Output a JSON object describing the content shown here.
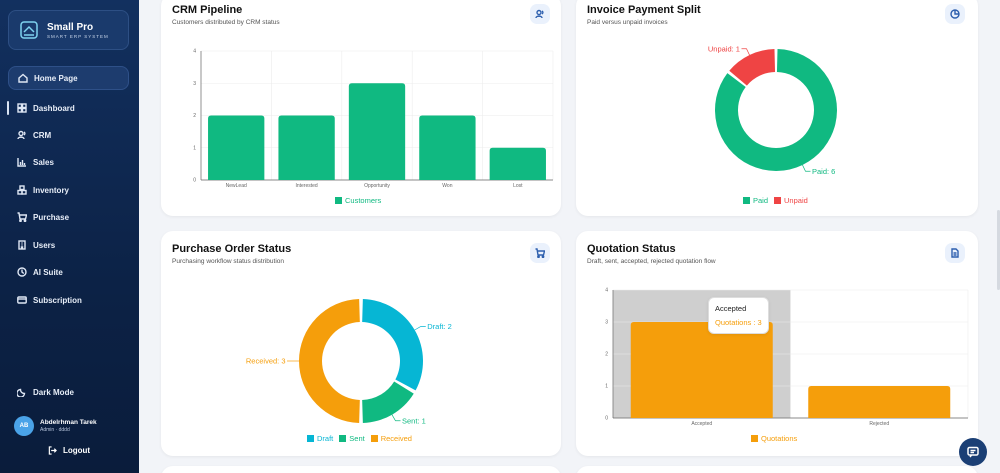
{
  "app": {
    "name": "Small Pro",
    "tagline": "SMART ERP SYSTEM"
  },
  "sidebar": {
    "items": [
      {
        "label": "Home Page",
        "icon": "home-icon"
      },
      {
        "label": "Dashboard",
        "icon": "dashboard-icon"
      },
      {
        "label": "CRM",
        "icon": "users-icon"
      },
      {
        "label": "Sales",
        "icon": "bar-chart-icon"
      },
      {
        "label": "Inventory",
        "icon": "boxes-icon"
      },
      {
        "label": "Purchase",
        "icon": "cart-icon"
      },
      {
        "label": "Users",
        "icon": "building-icon"
      },
      {
        "label": "AI Suite",
        "icon": "ai-icon"
      },
      {
        "label": "Subscription",
        "icon": "card-icon"
      }
    ],
    "dark_mode_label": "Dark Mode",
    "user": {
      "initials": "AB",
      "name": "Abdelrhman Tarek",
      "role": "Admin · dddd"
    },
    "logout_label": "Logout"
  },
  "cards": {
    "crm": {
      "title": "CRM Pipeline",
      "subtitle": "Customers distributed by CRM status",
      "icon": "users-icon"
    },
    "invoice": {
      "title": "Invoice Payment Split",
      "subtitle": "Paid versus unpaid invoices",
      "icon": "pie-chart-icon"
    },
    "purchase": {
      "title": "Purchase Order Status",
      "subtitle": "Purchasing workflow status distribution",
      "icon": "cart-icon"
    },
    "quotation": {
      "title": "Quotation Status",
      "subtitle": "Draft, sent, accepted, rejected quotation flow",
      "icon": "document-icon",
      "tooltip": {
        "title": "Accepted",
        "value": "Quotations : 3"
      }
    }
  },
  "chart_data": [
    {
      "id": "crm",
      "type": "bar",
      "categories": [
        "NewLead",
        "Interested",
        "Opportunity",
        "Won",
        "Lost"
      ],
      "series": [
        {
          "name": "Customers",
          "values": [
            2,
            2,
            3,
            2,
            1
          ]
        }
      ],
      "ylim": [
        0,
        4
      ],
      "yticks": [
        "0",
        "1",
        "2",
        "3",
        "4"
      ],
      "grid": true,
      "legend": "bottom",
      "color": "#10b981"
    },
    {
      "id": "invoice",
      "type": "pie",
      "labels": [
        "Paid",
        "Unpaid"
      ],
      "values": [
        6,
        1
      ],
      "slice_labels": [
        "Paid: 6",
        "Unpaid: 1"
      ],
      "colors": [
        "#10b981",
        "#ef4444"
      ],
      "legend": "bottom"
    },
    {
      "id": "purchase",
      "type": "pie",
      "labels": [
        "Draft",
        "Sent",
        "Received"
      ],
      "values": [
        2,
        1,
        3
      ],
      "slice_labels": [
        "Draft: 2",
        "Sent: 1",
        "Received: 3"
      ],
      "colors": [
        "#06b6d4",
        "#10b981",
        "#f59e0b"
      ],
      "legend": "bottom"
    },
    {
      "id": "quotation",
      "type": "bar",
      "categories": [
        "Accepted",
        "Rejected"
      ],
      "series": [
        {
          "name": "Quotations",
          "values": [
            3,
            1
          ]
        }
      ],
      "ylim": [
        0,
        4
      ],
      "yticks": [
        "0",
        "1",
        "2",
        "3",
        "4"
      ],
      "grid": true,
      "legend": "bottom",
      "color": "#f59e0b",
      "highlighted_category": "Accepted"
    }
  ]
}
